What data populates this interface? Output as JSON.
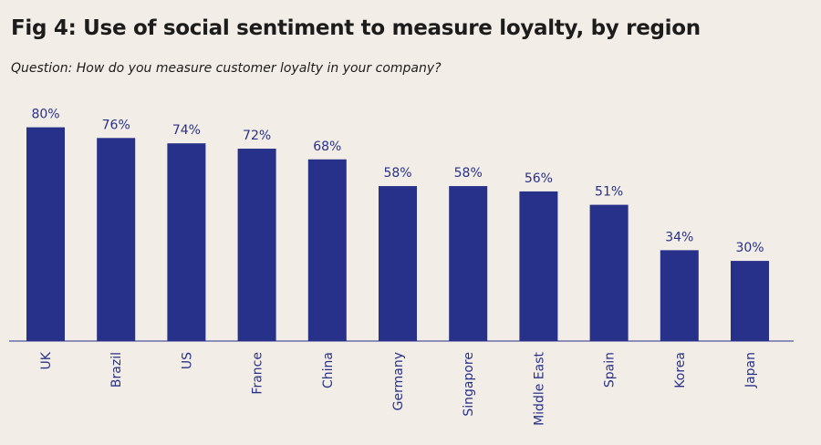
{
  "header": {
    "title": "Fig 4: Use of social sentiment to measure loyalty, by region",
    "subtitle": "Question: How do you measure customer loyalty in your company?"
  },
  "colors": {
    "background": "#f2ede6",
    "bar": "#28318a",
    "value_label": "#28318a",
    "axis": "#28318a"
  },
  "chart_data": {
    "type": "bar",
    "title": "Fig 4: Use of social sentiment to measure loyalty, by region",
    "subtitle": "Question: How do you measure customer loyalty in your company?",
    "xlabel": "",
    "ylabel": "",
    "categories": [
      "UK",
      "Brazil",
      "US",
      "France",
      "China",
      "Germany",
      "Singapore",
      "Middle East",
      "Spain",
      "Korea",
      "Japan"
    ],
    "values": [
      80,
      76,
      74,
      72,
      68,
      58,
      58,
      56,
      51,
      34,
      30
    ],
    "value_labels": [
      "80%",
      "76%",
      "74%",
      "72%",
      "68%",
      "58%",
      "58%",
      "56%",
      "51%",
      "34%",
      "30%"
    ],
    "unit": "%",
    "ylim": [
      0,
      100
    ],
    "grid": false,
    "legend": "none",
    "category_label_orientation": "vertical"
  }
}
